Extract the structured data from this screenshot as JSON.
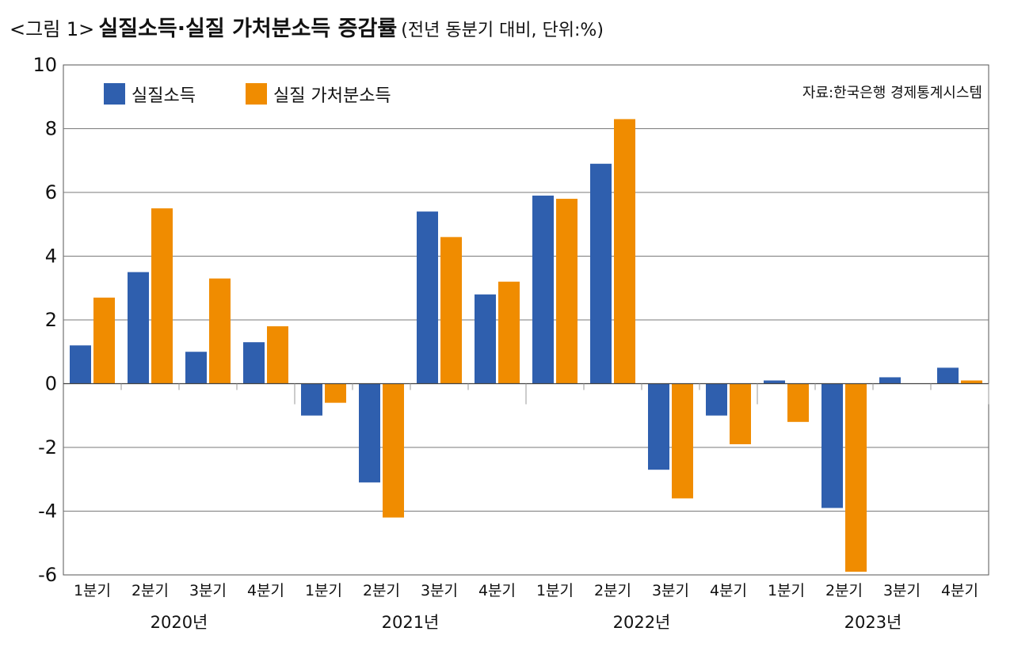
{
  "title": {
    "prefix": "<그림 1>",
    "main": "실질소득·실질 가처분소득 증감률",
    "sub": "(전년 동분기 대비, 단위:%)"
  },
  "chart_data": {
    "type": "bar",
    "title": "실질소득·실질 가처분소득 증감률",
    "subtitle": "(전년 동분기 대비, 단위:%)",
    "source": "자료:한국은행 경제통계시스템",
    "ylim": [
      -6,
      10
    ],
    "yticks": [
      10,
      8,
      6,
      4,
      2,
      0,
      -2,
      -4,
      -6
    ],
    "grid": true,
    "legend_position": "top-left",
    "quarter_labels": [
      "1분기",
      "2분기",
      "3분기",
      "4분기",
      "1분기",
      "2분기",
      "3분기",
      "4분기",
      "1분기",
      "2분기",
      "3분기",
      "4분기",
      "1분기",
      "2분기",
      "3분기",
      "4분기"
    ],
    "year_labels": [
      "2020년",
      "2021년",
      "2022년",
      "2023년"
    ],
    "categories": [
      "2020 1분기",
      "2020 2분기",
      "2020 3분기",
      "2020 4분기",
      "2021 1분기",
      "2021 2분기",
      "2021 3분기",
      "2021 4분기",
      "2022 1분기",
      "2022 2분기",
      "2022 3분기",
      "2022 4분기",
      "2023 1분기",
      "2023 2분기",
      "2023 3분기",
      "2023 4분기"
    ],
    "series": [
      {
        "name": "실질소득",
        "color": "#2f5fae",
        "values": [
          1.2,
          3.5,
          1.0,
          1.3,
          -1.0,
          -3.1,
          5.4,
          2.8,
          5.9,
          6.9,
          -2.7,
          -1.0,
          0.1,
          -3.9,
          0.2,
          0.5
        ]
      },
      {
        "name": "실질 가처분소득",
        "color": "#f08c00",
        "values": [
          2.7,
          5.5,
          3.3,
          1.8,
          -0.6,
          -4.2,
          4.6,
          3.2,
          5.8,
          8.3,
          -3.6,
          -1.9,
          -1.2,
          -5.9,
          0.0,
          0.1
        ]
      }
    ]
  }
}
